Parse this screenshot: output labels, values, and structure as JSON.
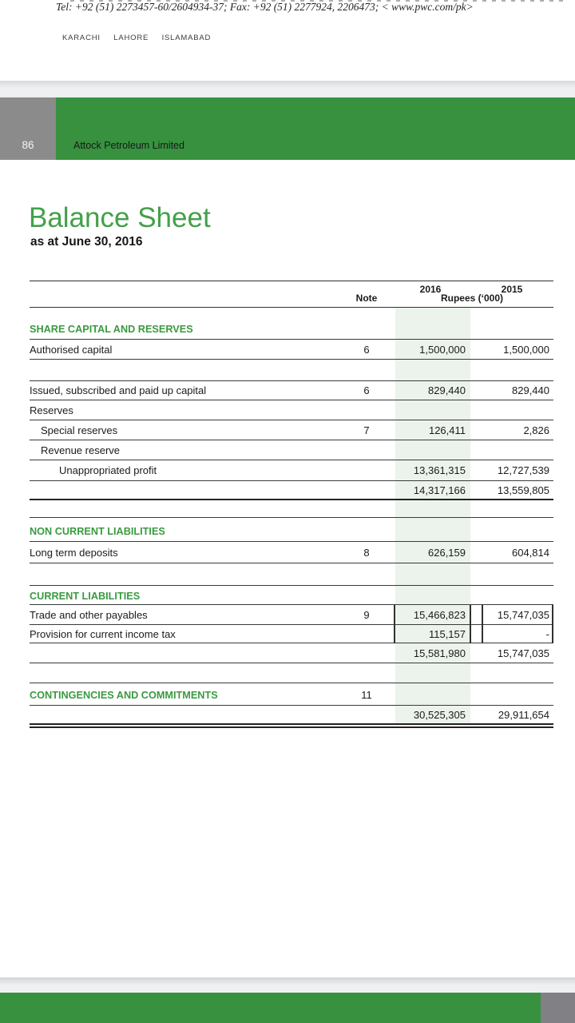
{
  "letterhead": {
    "tel_fax": "Tel: +92 (51) 2273457-60/2604934-37; Fax: +92 (51) 2277924, 2206473; < www.pwc.com/pk>",
    "cities": "KARACHI LAHORE ISLAMABAD"
  },
  "header_bar": {
    "page_number": "86",
    "company": "Attock Petroleum Limited"
  },
  "title": {
    "main": "Balance Sheet",
    "subtitle": "as at June 30, 2016"
  },
  "table": {
    "columns": {
      "note": "Note",
      "year1": "2016",
      "year2": "2015",
      "unit": "Rupees (‘000)"
    },
    "rows": [
      {
        "label": "SHARE CAPITAL AND RESERVES"
      },
      {
        "label": "Authorised capital",
        "note": "6",
        "v2016": "1,500,000",
        "v2015": "1,500,000"
      },
      {},
      {
        "label": "Issued, subscribed and paid up capital",
        "note": "6",
        "v2016": "829,440",
        "v2015": "829,440"
      },
      {
        "label": "Reserves"
      },
      {
        "label": "Special reserves",
        "note": "7",
        "v2016": "126,411",
        "v2015": "2,826"
      },
      {
        "label": "Revenue reserve"
      },
      {
        "label": "Unappropriated profit",
        "v2016": "13,361,315",
        "v2015": "12,727,539"
      },
      {
        "v2016": "14,317,166",
        "v2015": "13,559,805"
      },
      {},
      {
        "label": "NON CURRENT LIABILITIES"
      },
      {
        "label": "Long term deposits",
        "note": "8",
        "v2016": "626,159",
        "v2015": "604,814"
      },
      {},
      {
        "label": "CURRENT LIABILITIES"
      },
      {
        "label": "Trade and other payables",
        "note": "9",
        "v2016": "15,466,823",
        "v2015": "15,747,035"
      },
      {
        "label": "Provision for current income tax",
        "v2016": "115,157",
        "v2015": "-"
      },
      {
        "v2016": "15,581,980",
        "v2015": "15,747,035"
      },
      {},
      {
        "label": "CONTINGENCIES AND COMMITMENTS",
        "note": "11"
      },
      {
        "v2016": "30,525,305",
        "v2015": "29,911,654"
      }
    ]
  },
  "colors": {
    "brand_green": "#38913f",
    "section_green": "#3a9a40",
    "title_green": "#43a049",
    "column_band": "#ecf2ec",
    "page_box_gray": "#8b8b8b",
    "footer_gray": "#808085",
    "band_gray": "#eef0f2"
  }
}
